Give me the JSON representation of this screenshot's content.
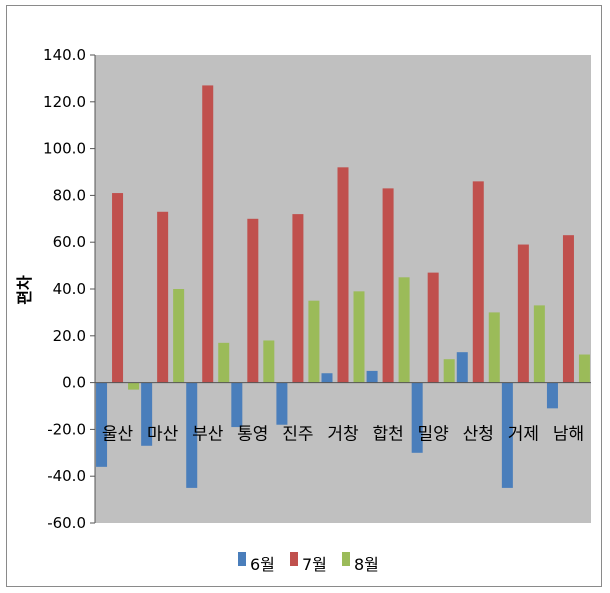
{
  "chart_data": {
    "type": "bar",
    "title": "",
    "xlabel": "",
    "ylabel": "편차",
    "ylim": [
      -60,
      140
    ],
    "yticks": [
      "140.0",
      "120.0",
      "100.0",
      "80.0",
      "60.0",
      "40.0",
      "20.0",
      "0.0",
      "-20.0",
      "-40.0",
      "-60.0"
    ],
    "grid": false,
    "legend": "bottom",
    "categories": [
      "울산",
      "마산",
      "부산",
      "통영",
      "진주",
      "거창",
      "합천",
      "밀양",
      "산청",
      "거제",
      "남해"
    ],
    "series": [
      {
        "name": "6월",
        "color": "#4a7ebb",
        "values": [
          -36,
          -27,
          -45,
          -19,
          -18,
          4,
          5,
          -30,
          13,
          -45,
          -11
        ]
      },
      {
        "name": "7월",
        "color": "#c0504d",
        "values": [
          81,
          73,
          127,
          70,
          72,
          92,
          83,
          47,
          86,
          59,
          63
        ]
      },
      {
        "name": "8월",
        "color": "#9bbb59",
        "values": [
          -3,
          40,
          17,
          18,
          35,
          39,
          45,
          10,
          30,
          33,
          12
        ]
      }
    ],
    "plot_background": "#c0c0c0"
  }
}
